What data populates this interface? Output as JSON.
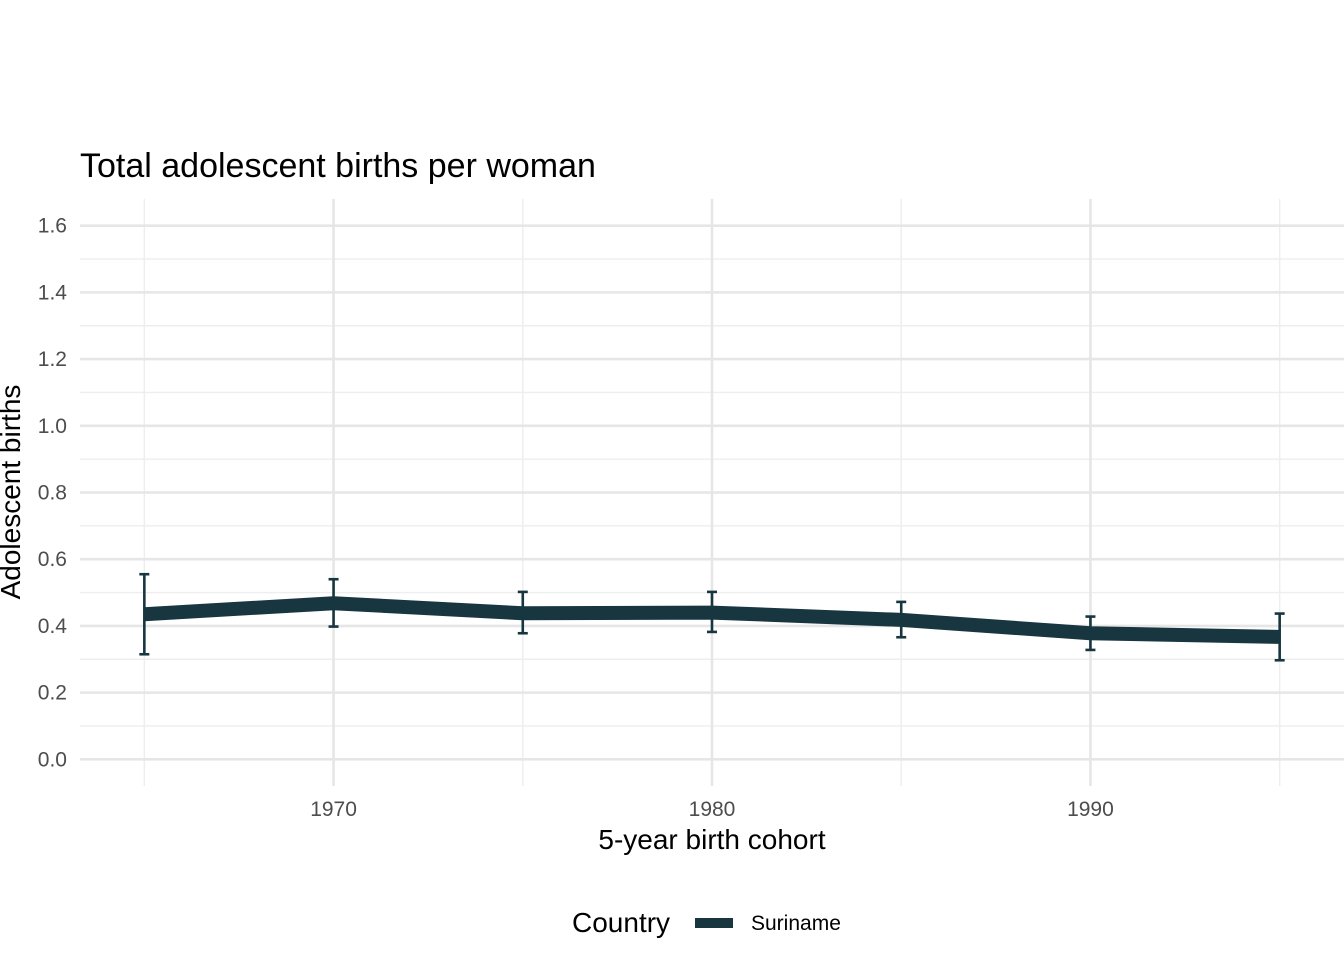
{
  "chart_data": {
    "type": "line",
    "title": "Total adolescent births per woman",
    "xlabel": "5-year birth cohort",
    "ylabel": "Adolescent births",
    "x_ticks": [
      "1970",
      "1980",
      "1990"
    ],
    "y_ticks": [
      "0.0",
      "0.2",
      "0.4",
      "0.6",
      "0.8",
      "1.0",
      "1.2",
      "1.4",
      "1.6"
    ],
    "xlim": [
      1963.3,
      1996.7
    ],
    "ylim": [
      -0.08,
      1.68
    ],
    "grid": true,
    "legend": {
      "position": "bottom",
      "title": "Country"
    },
    "series": [
      {
        "name": "Suriname",
        "color": "#173640",
        "x": [
          1965,
          1970,
          1975,
          1980,
          1985,
          1990,
          1995
        ],
        "values": [
          0.435,
          0.468,
          0.438,
          0.44,
          0.418,
          0.378,
          0.367
        ],
        "error_low": [
          0.315,
          0.398,
          0.378,
          0.382,
          0.366,
          0.328,
          0.297
        ],
        "error_high": [
          0.555,
          0.54,
          0.502,
          0.502,
          0.472,
          0.428,
          0.437
        ]
      }
    ]
  }
}
